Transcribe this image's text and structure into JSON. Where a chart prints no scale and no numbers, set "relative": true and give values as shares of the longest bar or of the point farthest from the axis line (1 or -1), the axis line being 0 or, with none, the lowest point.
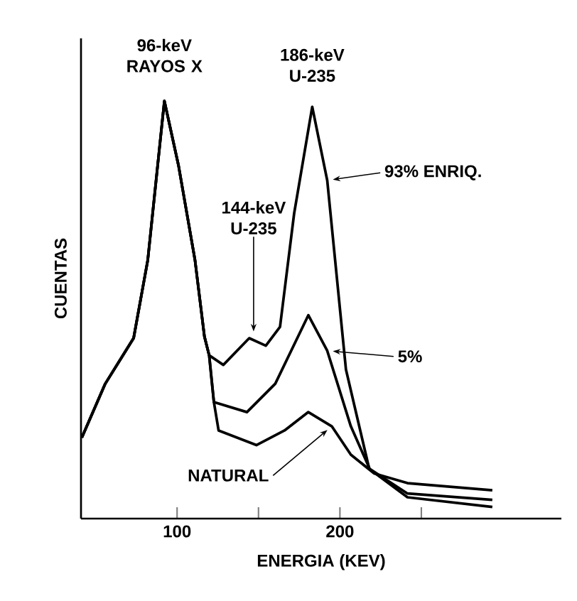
{
  "chart_data": {
    "type": "line",
    "relative": true,
    "xlabel": "ENERGIA (KEV)",
    "ylabel": "CUENTAS",
    "xlim": [
      41,
      336
    ],
    "legend": "right",
    "xticks": [
      100,
      {
        "value": 150,
        "label": null
      },
      200,
      {
        "value": 250,
        "label": null
      }
    ],
    "series": [
      {
        "name": "93% ENRIQ.",
        "color": "#000000",
        "x": [
          41.5,
          55.9,
          73.3,
          82,
          92.2,
          100.9,
          111,
          116.8,
          119.7,
          128.4,
          144.3,
          154.5,
          163.2,
          171.9,
          183,
          192.2,
          203.7,
          218,
          241.5,
          293.6
        ],
        "values": [
          0.194,
          0.323,
          0.432,
          0.619,
          1.0,
          0.845,
          0.619,
          0.436,
          0.391,
          0.368,
          0.432,
          0.414,
          0.459,
          0.731,
          0.986,
          0.81,
          0.357,
          0.119,
          0.051,
          0.028
        ]
      },
      {
        "name": "5%",
        "color": "#000000",
        "x": [
          41.5,
          55.9,
          73.3,
          82,
          92.2,
          100.9,
          111,
          116.8,
          119.7,
          122.6,
          142.9,
          160.3,
          180.6,
          192.2,
          206.7,
          218.3,
          241.5,
          293.6
        ],
        "values": [
          0.194,
          0.323,
          0.432,
          0.619,
          1.0,
          0.845,
          0.619,
          0.436,
          0.391,
          0.279,
          0.255,
          0.323,
          0.487,
          0.402,
          0.221,
          0.119,
          0.06,
          0.045
        ]
      },
      {
        "name": "NATURAL",
        "color": "#000000",
        "x": [
          41.5,
          55.9,
          73.3,
          82,
          92.2,
          100.9,
          111,
          116.8,
          119.7,
          122.6,
          125.5,
          148.7,
          166,
          180.6,
          195,
          206.7,
          221.1,
          241.5,
          293.6
        ],
        "values": [
          0.194,
          0.323,
          0.432,
          0.619,
          1.0,
          0.845,
          0.619,
          0.436,
          0.391,
          0.279,
          0.211,
          0.176,
          0.211,
          0.255,
          0.221,
          0.153,
          0.108,
          0.085,
          0.068
        ]
      }
    ],
    "annotations": [
      {
        "text": "96-keV RAYOS X",
        "x": 92.2,
        "y": 1.0
      },
      {
        "text": "186-keV U-235",
        "x": 183,
        "y": 0.986
      },
      {
        "text": "144-keV U-235",
        "x": 147,
        "y": 0.43
      }
    ]
  }
}
